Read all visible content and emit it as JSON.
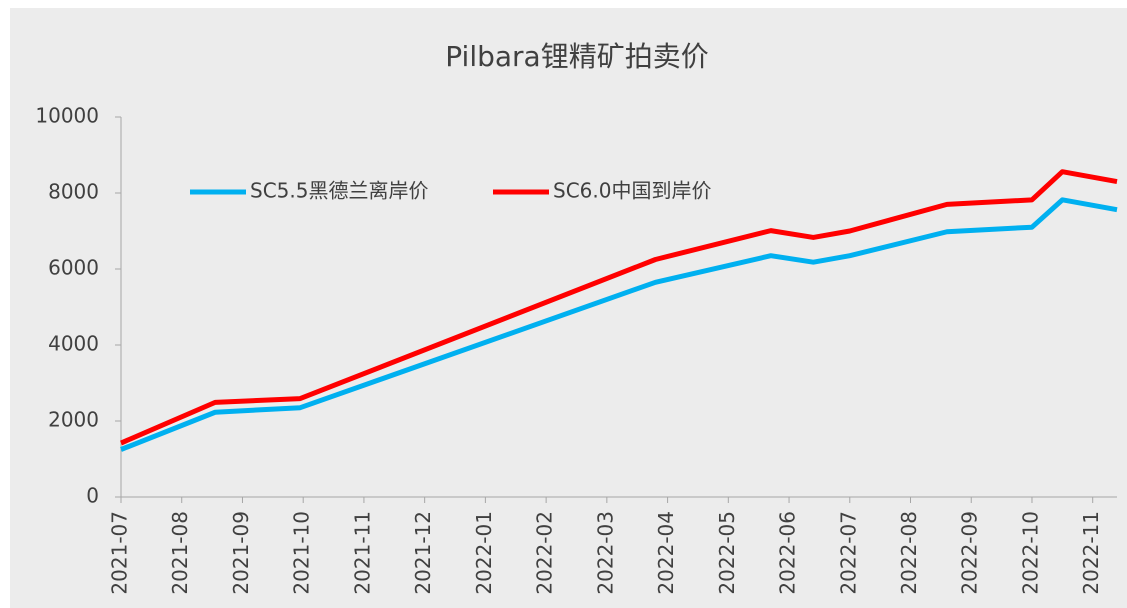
{
  "chart_data": {
    "type": "line",
    "title": "Pilbara锂精矿拍卖价",
    "x": [
      0,
      1.55,
      2.95,
      8.8,
      10.7,
      11.4,
      12,
      13.6,
      15,
      15.5,
      16.4
    ],
    "xlim": [
      0,
      16.4
    ],
    "xticks": [
      {
        "value": 0,
        "label": "2021-07"
      },
      {
        "value": 1,
        "label": "2021-08"
      },
      {
        "value": 2,
        "label": "2021-09"
      },
      {
        "value": 3,
        "label": "2021-10"
      },
      {
        "value": 4,
        "label": "2021-11"
      },
      {
        "value": 5,
        "label": "2021-12"
      },
      {
        "value": 6,
        "label": "2022-01"
      },
      {
        "value": 7,
        "label": "2022-02"
      },
      {
        "value": 8,
        "label": "2022-03"
      },
      {
        "value": 9,
        "label": "2022-04"
      },
      {
        "value": 10,
        "label": "2022-05"
      },
      {
        "value": 11,
        "label": "2022-06"
      },
      {
        "value": 12,
        "label": "2022-07"
      },
      {
        "value": 13,
        "label": "2022-08"
      },
      {
        "value": 14,
        "label": "2022-09"
      },
      {
        "value": 15,
        "label": "2022-10"
      },
      {
        "value": 16,
        "label": "2022-11"
      }
    ],
    "ylim": [
      0,
      10000
    ],
    "yticks": [
      0,
      2000,
      4000,
      6000,
      8000,
      10000
    ],
    "legend": "top-left",
    "series": [
      {
        "name": "SC5.5黑德兰离岸价",
        "color": "#00b0f0",
        "values": [
          1250,
          2230,
          2350,
          5650,
          6350,
          6180,
          6350,
          6980,
          7100,
          7820,
          7560
        ]
      },
      {
        "name": "SC6.0中国到岸价",
        "color": "#ff0000",
        "values": [
          1420,
          2490,
          2590,
          6250,
          7010,
          6830,
          7000,
          7700,
          7820,
          8560,
          8300
        ]
      }
    ]
  }
}
